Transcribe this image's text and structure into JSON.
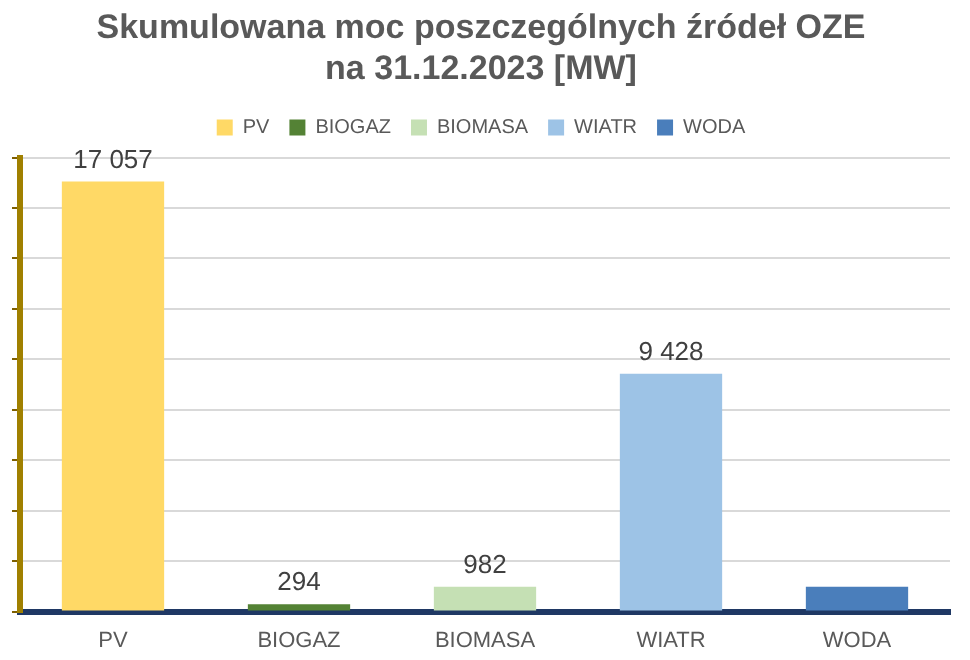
{
  "chart_data": {
    "type": "bar",
    "title": "Skumulowana moc poszczególnych źródeł OZE\nna 31.12.2023 [MW]",
    "categories": [
      "PV",
      "BIOGAZ",
      "BIOMASA",
      "WIATR",
      "WODA"
    ],
    "series": [
      {
        "name": "PV",
        "color": "#ffd966",
        "values": [
          17057,
          null,
          null,
          null,
          null
        ],
        "value_labels": [
          "17 057",
          null,
          null,
          null,
          null
        ]
      },
      {
        "name": "BIOGAZ",
        "color": "#548235",
        "values": [
          null,
          294,
          null,
          null,
          null
        ],
        "value_labels": [
          null,
          "294",
          null,
          null,
          null
        ]
      },
      {
        "name": "BIOMASA",
        "color": "#c5e0b4",
        "values": [
          null,
          null,
          982,
          null,
          null
        ],
        "value_labels": [
          null,
          null,
          "982",
          null,
          null
        ]
      },
      {
        "name": "WIATR",
        "color": "#9dc3e6",
        "values": [
          null,
          null,
          null,
          9428,
          null
        ],
        "value_labels": [
          null,
          null,
          null,
          "9 428",
          null
        ]
      },
      {
        "name": "WODA",
        "color": "#4a7ebb",
        "values": [
          null,
          null,
          null,
          null,
          990
        ],
        "value_labels": [
          null,
          null,
          null,
          null,
          null
        ]
      }
    ],
    "ylim": [
      0,
      18000
    ],
    "yticks": [
      {
        "value": 0,
        "label": null
      },
      {
        "value": 2000,
        "label": null
      },
      {
        "value": 4000,
        "label": null
      },
      {
        "value": 6000,
        "label": null
      },
      {
        "value": 8000,
        "label": null
      },
      {
        "value": 10000,
        "label": null
      },
      {
        "value": 12000,
        "label": null
      },
      {
        "value": 14000,
        "label": null
      },
      {
        "value": 16000,
        "label": null
      },
      {
        "value": 18000,
        "label": null
      }
    ],
    "grid": "y",
    "legend": "top",
    "tick_labels": "x"
  }
}
